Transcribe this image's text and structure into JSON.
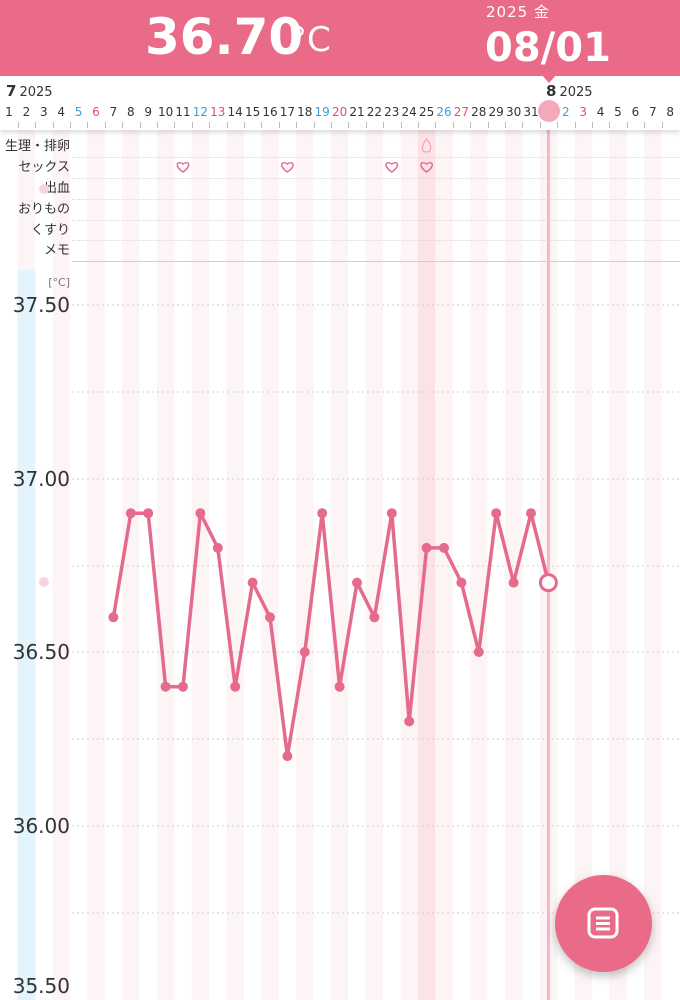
{
  "header": {
    "temperature": "36.70",
    "unit": "°C",
    "year_weekday": "2025 金",
    "date": "08/01"
  },
  "date_strip": {
    "months": [
      {
        "month": "7",
        "year": "2025"
      },
      {
        "month": "8",
        "year": "2025"
      }
    ],
    "days": [
      "1",
      "2",
      "3",
      "4",
      "5",
      "6",
      "7",
      "8",
      "9",
      "10",
      "11",
      "12",
      "13",
      "14",
      "15",
      "16",
      "17",
      "18",
      "19",
      "20",
      "21",
      "22",
      "23",
      "24",
      "25",
      "26",
      "27",
      "28",
      "29",
      "30",
      "31",
      "1",
      "2",
      "3",
      "4",
      "5",
      "6",
      "7",
      "8"
    ],
    "selected_index": 31
  },
  "row_labels": {
    "period_ovulation": "生理・排卵",
    "sex": "セックス",
    "bleeding": "出血",
    "discharge": "おりもの",
    "medicine": "くすり",
    "memo": "メモ"
  },
  "markers": {
    "period_days": [
      25
    ],
    "sex_days": [
      11,
      17,
      23,
      25
    ]
  },
  "chart_data": {
    "type": "line",
    "x": [
      7,
      8,
      9,
      10,
      11,
      12,
      13,
      14,
      15,
      16,
      17,
      18,
      19,
      20,
      21,
      22,
      23,
      24,
      25,
      26,
      27,
      28,
      29,
      30,
      31,
      32
    ],
    "y": [
      36.6,
      36.9,
      36.9,
      36.4,
      36.4,
      36.9,
      36.8,
      36.4,
      36.7,
      36.6,
      36.2,
      36.5,
      36.9,
      36.4,
      36.7,
      36.6,
      36.9,
      36.3,
      36.8,
      36.8,
      36.7,
      36.5,
      36.9,
      36.7,
      36.9,
      36.7
    ],
    "current_point": {
      "x": 32,
      "y": 36.7
    },
    "ylim": [
      35.5,
      37.55
    ],
    "y_ticks": [
      "37.50",
      "37.00",
      "36.50",
      "36.00",
      "35.50"
    ],
    "y_unit": "[°C]",
    "color": "#e56b8c",
    "grid": true
  },
  "colors": {
    "accent": "#e96b88",
    "line": "#e56b8c",
    "saturday": "#3aa0dc",
    "sunday": "#e04c7f"
  },
  "fab": {
    "icon": "list-icon"
  }
}
